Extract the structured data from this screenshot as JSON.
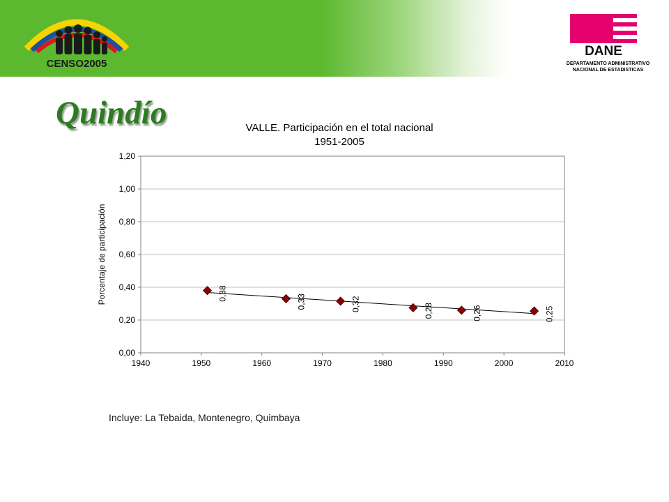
{
  "header": {
    "censo_logo_text": "CENSO2005",
    "dane_logo_text": "DANE",
    "dane_subtitle_line1": "DEPARTAMENTO ADMINISTRATIVO",
    "dane_subtitle_line2": "NACIONAL DE ESTADISTICAS",
    "banner_green": "#5cb82e",
    "dane_magenta": "#e5006e"
  },
  "page": {
    "title": "Quindío",
    "title_color": "#2d7a22",
    "note": "Incluye: La Tebaida, Montenegro, Quimbaya"
  },
  "chart_data": {
    "type": "scatter",
    "title": "VALLE. Participación en el total nacional",
    "subtitle": "1951-2005",
    "xlabel": "",
    "ylabel": "Porcentaje de participación",
    "xlim": [
      1940,
      2010
    ],
    "ylim": [
      0,
      1.2
    ],
    "xticks": [
      "1940",
      "1950",
      "1960",
      "1970",
      "1980",
      "1990",
      "2000",
      "2010"
    ],
    "yticks": [
      "0,00",
      "0,20",
      "0,40",
      "0,60",
      "0,80",
      "1,00",
      "1,20"
    ],
    "grid": true,
    "legend": "none",
    "trendline": "linear",
    "marker_color": "#8b0000",
    "series": [
      {
        "x": [
          1951,
          1964,
          1973,
          1985,
          1993,
          2005
        ],
        "y": [
          0.38,
          0.33,
          0.315,
          0.275,
          0.26,
          0.255
        ],
        "labels": [
          "0,38",
          "0,33",
          "0,32",
          "0,28",
          "0,26",
          "0,25"
        ]
      }
    ]
  }
}
